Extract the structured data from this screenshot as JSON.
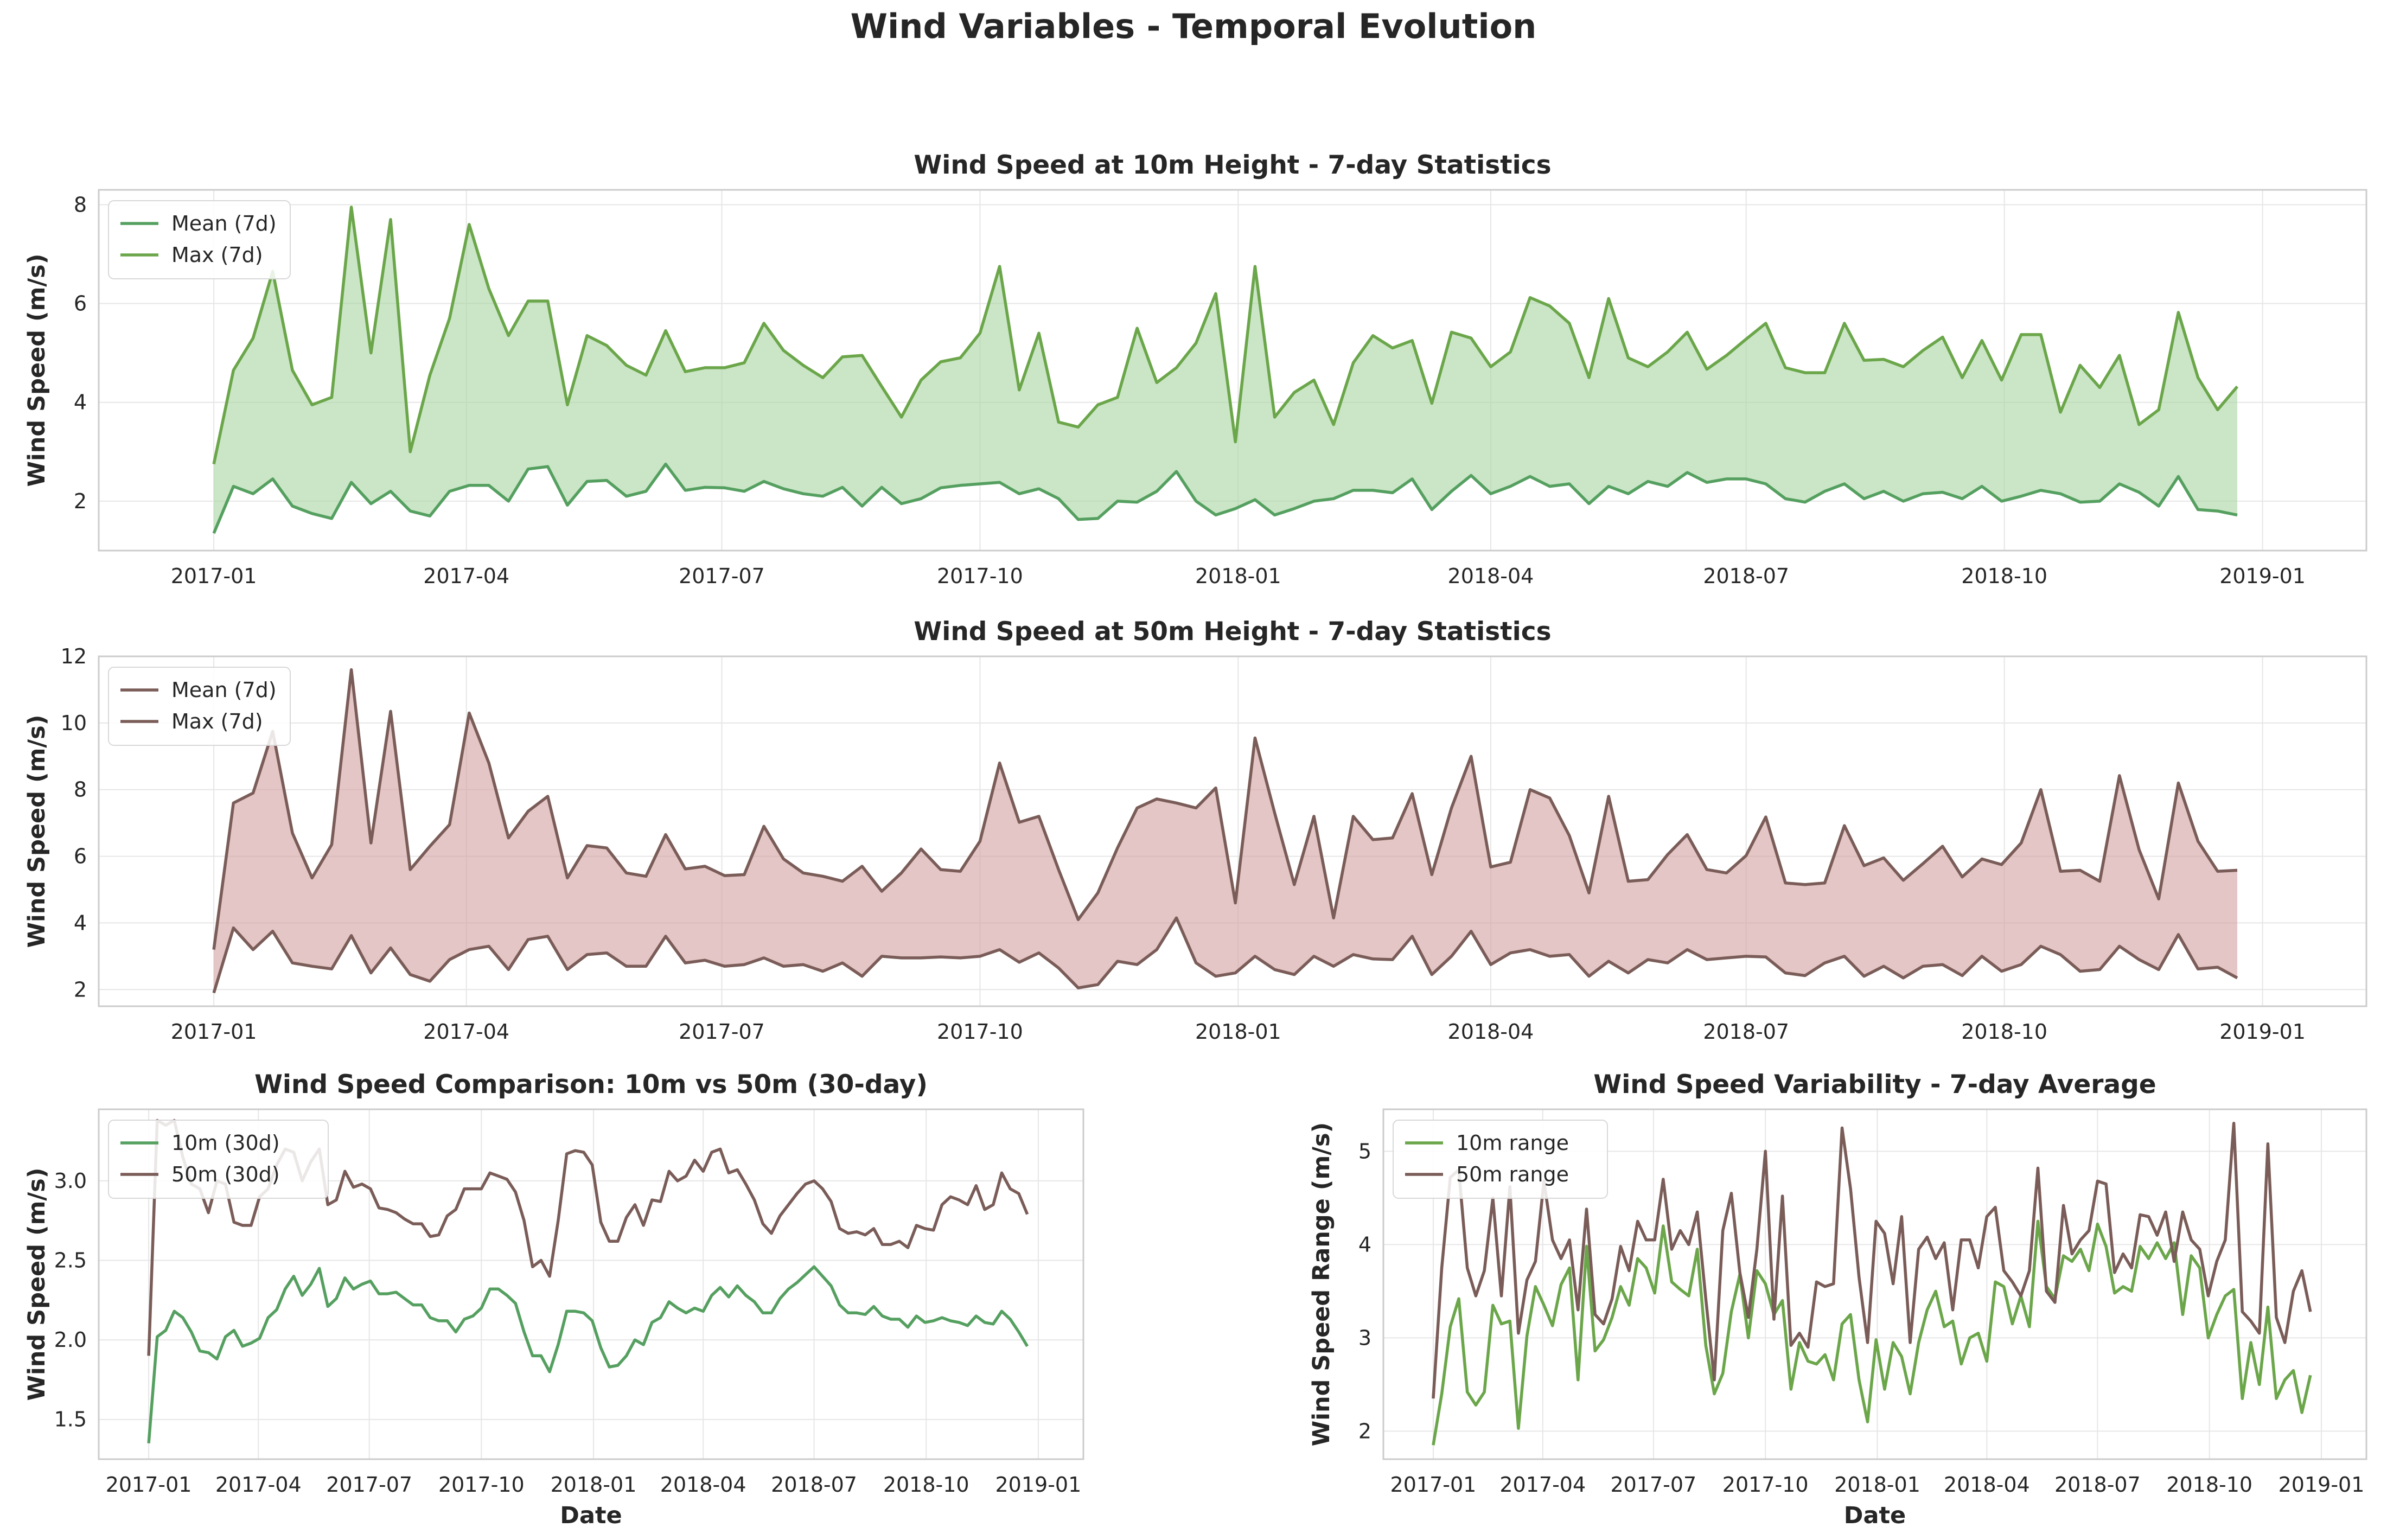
{
  "figure": {
    "title": "Wind Variables - Temporal Evolution"
  },
  "colors": {
    "green": "#55a060",
    "green_max": "#6ba64a",
    "green_fill": "#a8d5a2",
    "brown": "#7a5c58",
    "brown_fill": "#d4a0a0"
  },
  "chart_data": [
    {
      "type": "area",
      "title": "Wind Speed at 10m Height - 7-day Statistics",
      "xlabel": "",
      "ylabel": "Wind Speed (m/s)",
      "xlim": [
        "2016-11-21",
        "2019-02-07"
      ],
      "ylim": [
        1.0,
        8.3
      ],
      "yticks": [
        2,
        4,
        6,
        8
      ],
      "xticks": [
        "2017-01",
        "2017-04",
        "2017-07",
        "2017-10",
        "2018-01",
        "2018-04",
        "2018-07",
        "2018-10",
        "2019-01"
      ],
      "grid": true,
      "legend": "top-left",
      "x_start": "2017-01-01",
      "x_step_days": 7,
      "series": [
        {
          "name": "Mean (7d)",
          "color": "#55a060",
          "values": [
            1.35,
            2.3,
            2.15,
            2.45,
            1.9,
            1.75,
            1.65,
            2.38,
            1.95,
            2.2,
            1.8,
            1.7,
            2.2,
            2.32,
            2.32,
            2.0,
            2.65,
            2.7,
            1.92,
            2.4,
            2.42,
            2.1,
            2.2,
            2.75,
            2.22,
            2.28,
            2.27,
            2.2,
            2.4,
            2.25,
            2.15,
            2.1,
            2.28,
            1.9,
            2.28,
            1.95,
            2.05,
            2.27,
            2.32,
            2.35,
            2.38,
            2.15,
            2.25,
            2.05,
            1.63,
            1.65,
            2.0,
            1.98,
            2.2,
            2.6,
            2.0,
            1.72,
            1.85,
            2.03,
            1.72,
            1.85,
            2.0,
            2.05,
            2.22,
            2.22,
            2.17,
            2.45,
            1.83,
            2.2,
            2.52,
            2.15,
            2.3,
            2.5,
            2.3,
            2.35,
            1.95,
            2.3,
            2.15,
            2.4,
            2.3,
            2.58,
            2.38,
            2.45,
            2.45,
            2.35,
            2.05,
            1.98,
            2.2,
            2.35,
            2.05,
            2.2,
            2.0,
            2.15,
            2.18,
            2.05,
            2.3,
            2.0,
            2.1,
            2.22,
            2.15,
            1.98,
            2.0,
            2.35,
            2.18,
            1.9,
            2.5,
            1.83,
            1.8,
            1.72
          ]
        },
        {
          "name": "Max (7d)",
          "color": "#6ba64a",
          "values": [
            2.75,
            4.65,
            5.3,
            6.65,
            4.65,
            3.95,
            4.1,
            7.95,
            5.0,
            7.7,
            3.0,
            4.55,
            5.7,
            7.6,
            6.3,
            5.35,
            6.05,
            6.05,
            3.95,
            5.35,
            5.15,
            4.75,
            4.55,
            5.45,
            4.62,
            4.7,
            4.7,
            4.8,
            5.6,
            5.05,
            4.75,
            4.5,
            4.92,
            4.95,
            4.32,
            3.7,
            4.45,
            4.82,
            4.9,
            5.4,
            6.75,
            4.25,
            5.4,
            3.6,
            3.5,
            3.95,
            4.1,
            5.5,
            4.4,
            4.7,
            5.2,
            6.2,
            3.2,
            6.75,
            3.7,
            4.2,
            4.45,
            3.55,
            4.8,
            5.35,
            5.1,
            5.25,
            3.98,
            5.42,
            5.3,
            4.72,
            5.02,
            6.12,
            5.95,
            5.6,
            4.5,
            6.1,
            4.9,
            4.72,
            5.02,
            5.42,
            4.67,
            4.95,
            5.28,
            5.6,
            4.7,
            4.6,
            4.6,
            5.6,
            4.85,
            4.87,
            4.72,
            5.05,
            5.32,
            4.5,
            5.25,
            4.45,
            5.37,
            5.37,
            3.8,
            4.75,
            4.3,
            4.95,
            3.55,
            3.85,
            5.82,
            4.5,
            3.85,
            4.32
          ]
        }
      ]
    },
    {
      "type": "area",
      "title": "Wind Speed at 50m Height - 7-day Statistics",
      "xlabel": "",
      "ylabel": "Wind Speed (m/s)",
      "xlim": [
        "2016-11-21",
        "2019-02-07"
      ],
      "ylim": [
        1.5,
        12.0
      ],
      "yticks": [
        2,
        4,
        6,
        8,
        10,
        12
      ],
      "xticks": [
        "2017-01",
        "2017-04",
        "2017-07",
        "2017-10",
        "2018-01",
        "2018-04",
        "2018-07",
        "2018-10",
        "2019-01"
      ],
      "grid": true,
      "legend": "top-left",
      "x_start": "2017-01-01",
      "x_step_days": 7,
      "series": [
        {
          "name": "Mean (7d)",
          "color": "#7a5c58",
          "values": [
            1.9,
            3.85,
            3.2,
            3.75,
            2.8,
            2.7,
            2.62,
            3.62,
            2.5,
            3.25,
            2.45,
            2.25,
            2.9,
            3.2,
            3.3,
            2.6,
            3.5,
            3.6,
            2.6,
            3.05,
            3.1,
            2.7,
            2.7,
            3.6,
            2.8,
            2.88,
            2.7,
            2.75,
            2.95,
            2.7,
            2.75,
            2.55,
            2.8,
            2.4,
            3.0,
            2.95,
            2.95,
            2.98,
            2.95,
            3.0,
            3.2,
            2.82,
            3.1,
            2.65,
            2.05,
            2.15,
            2.85,
            2.75,
            3.2,
            4.15,
            2.8,
            2.4,
            2.5,
            3.0,
            2.6,
            2.45,
            3.0,
            2.7,
            3.05,
            2.92,
            2.9,
            3.6,
            2.45,
            3.0,
            3.75,
            2.75,
            3.1,
            3.2,
            3.0,
            3.05,
            2.4,
            2.85,
            2.5,
            2.9,
            2.8,
            3.2,
            2.9,
            2.95,
            3.0,
            2.98,
            2.5,
            2.42,
            2.8,
            3.0,
            2.4,
            2.7,
            2.35,
            2.7,
            2.75,
            2.42,
            3.0,
            2.55,
            2.75,
            3.3,
            3.05,
            2.55,
            2.6,
            3.3,
            2.9,
            2.6,
            3.65,
            2.62,
            2.67,
            2.35
          ]
        },
        {
          "name": "Max (7d)",
          "color": "#7a5c58",
          "values": [
            3.2,
            7.6,
            7.9,
            9.75,
            6.7,
            5.35,
            6.35,
            11.6,
            6.4,
            10.35,
            5.6,
            6.3,
            6.95,
            10.3,
            8.8,
            6.55,
            7.35,
            7.8,
            5.35,
            6.32,
            6.25,
            5.5,
            5.4,
            6.65,
            5.62,
            5.7,
            5.42,
            5.45,
            6.9,
            5.92,
            5.5,
            5.4,
            5.25,
            5.7,
            4.95,
            5.5,
            6.22,
            5.6,
            5.55,
            6.45,
            8.8,
            7.02,
            7.2,
            5.6,
            4.1,
            4.9,
            6.25,
            7.45,
            7.72,
            7.6,
            7.45,
            8.05,
            4.6,
            9.55,
            7.3,
            5.15,
            7.2,
            4.15,
            7.2,
            6.5,
            6.55,
            7.88,
            5.45,
            7.45,
            9.0,
            5.68,
            5.82,
            8.0,
            7.75,
            6.62,
            4.9,
            7.8,
            5.25,
            5.3,
            6.05,
            6.65,
            5.6,
            5.5,
            6.02,
            7.18,
            5.2,
            5.15,
            5.2,
            6.92,
            5.72,
            5.95,
            5.28,
            5.78,
            6.3,
            5.38,
            5.92,
            5.75,
            6.4,
            8.0,
            5.55,
            5.58,
            5.25,
            8.42,
            6.2,
            4.72,
            8.2,
            6.45,
            5.55,
            5.58
          ]
        }
      ]
    },
    {
      "type": "line",
      "title": "Wind Speed Comparison: 10m vs 50m (30-day)",
      "xlabel": "Date",
      "ylabel": "Wind Speed (m/s)",
      "xlim": [
        "2016-11-21",
        "2019-02-07"
      ],
      "ylim": [
        1.25,
        3.45
      ],
      "yticks": [
        1.5,
        2.0,
        2.5,
        3.0
      ],
      "xticks": [
        "2017-01",
        "2017-04",
        "2017-07",
        "2017-10",
        "2018-01",
        "2018-04",
        "2018-07",
        "2018-10",
        "2019-01"
      ],
      "grid": true,
      "legend": "top-left",
      "x_start": "2017-01-01",
      "x_step_days": 7,
      "series": [
        {
          "name": "10m (30d)",
          "color": "#55a060",
          "values": [
            1.35,
            2.02,
            2.06,
            2.18,
            2.14,
            2.05,
            1.93,
            1.92,
            1.88,
            2.02,
            2.06,
            1.96,
            1.98,
            2.01,
            2.14,
            2.19,
            2.32,
            2.4,
            2.28,
            2.35,
            2.45,
            2.21,
            2.26,
            2.39,
            2.32,
            2.35,
            2.37,
            2.29,
            2.29,
            2.3,
            2.26,
            2.22,
            2.22,
            2.14,
            2.12,
            2.12,
            2.05,
            2.13,
            2.15,
            2.2,
            2.32,
            2.32,
            2.28,
            2.23,
            2.05,
            1.9,
            1.9,
            1.8,
            1.97,
            2.18,
            2.18,
            2.17,
            2.12,
            1.95,
            1.83,
            1.84,
            1.9,
            2.0,
            1.97,
            2.11,
            2.14,
            2.24,
            2.2,
            2.17,
            2.2,
            2.18,
            2.28,
            2.33,
            2.27,
            2.34,
            2.28,
            2.24,
            2.17,
            2.17,
            2.26,
            2.32,
            2.36,
            2.41,
            2.46,
            2.4,
            2.34,
            2.22,
            2.17,
            2.17,
            2.16,
            2.21,
            2.15,
            2.13,
            2.13,
            2.08,
            2.15,
            2.11,
            2.12,
            2.14,
            2.12,
            2.11,
            2.09,
            2.15,
            2.11,
            2.1,
            2.18,
            2.13,
            2.05,
            1.96
          ]
        },
        {
          "name": "50m (30d)",
          "color": "#7a5c58",
          "values": [
            1.9,
            3.38,
            3.35,
            3.38,
            3.15,
            2.98,
            2.95,
            2.8,
            3.0,
            2.98,
            2.74,
            2.72,
            2.72,
            2.9,
            2.95,
            3.1,
            3.2,
            3.18,
            3.0,
            3.12,
            3.2,
            2.85,
            2.88,
            3.06,
            2.96,
            2.98,
            2.95,
            2.83,
            2.82,
            2.8,
            2.76,
            2.73,
            2.73,
            2.65,
            2.66,
            2.78,
            2.82,
            2.95,
            2.95,
            2.95,
            3.05,
            3.03,
            3.01,
            2.93,
            2.75,
            2.46,
            2.5,
            2.4,
            2.75,
            3.17,
            3.19,
            3.18,
            3.1,
            2.74,
            2.62,
            2.62,
            2.77,
            2.85,
            2.72,
            2.88,
            2.87,
            3.06,
            3.0,
            3.03,
            3.13,
            3.06,
            3.18,
            3.2,
            3.05,
            3.07,
            2.98,
            2.88,
            2.73,
            2.67,
            2.78,
            2.85,
            2.92,
            2.98,
            3.0,
            2.95,
            2.87,
            2.7,
            2.67,
            2.68,
            2.66,
            2.7,
            2.6,
            2.6,
            2.62,
            2.58,
            2.72,
            2.7,
            2.69,
            2.85,
            2.9,
            2.88,
            2.85,
            2.97,
            2.82,
            2.85,
            3.05,
            2.95,
            2.92,
            2.79
          ]
        }
      ]
    },
    {
      "type": "line",
      "title": "Wind Speed Variability - 7-day Average",
      "xlabel": "Date",
      "ylabel": "Wind Speed Range (m/s)",
      "xlim": [
        "2016-11-21",
        "2019-02-07"
      ],
      "ylim": [
        1.7,
        5.45
      ],
      "yticks": [
        2,
        3,
        4,
        5
      ],
      "xticks": [
        "2017-01",
        "2017-04",
        "2017-07",
        "2017-10",
        "2018-01",
        "2018-04",
        "2018-07",
        "2018-10",
        "2019-01"
      ],
      "grid": true,
      "legend": "top-left",
      "x_start": "2017-01-01",
      "x_step_days": 7,
      "series": [
        {
          "name": "10m range",
          "color": "#6ba64a",
          "values": [
            1.85,
            2.4,
            3.12,
            3.42,
            2.42,
            2.28,
            2.42,
            3.35,
            3.15,
            3.18,
            2.03,
            3.02,
            3.55,
            3.35,
            3.13,
            3.57,
            3.75,
            2.55,
            3.98,
            2.86,
            2.98,
            3.22,
            3.55,
            3.35,
            3.85,
            3.75,
            3.48,
            4.2,
            3.6,
            3.52,
            3.45,
            3.95,
            2.92,
            2.4,
            2.62,
            3.28,
            3.68,
            3.0,
            3.72,
            3.58,
            3.25,
            3.4,
            2.45,
            2.95,
            2.75,
            2.72,
            2.82,
            2.55,
            3.15,
            3.25,
            2.55,
            2.1,
            2.98,
            2.45,
            2.95,
            2.8,
            2.4,
            2.95,
            3.3,
            3.5,
            3.12,
            3.18,
            2.72,
            3.0,
            3.05,
            2.75,
            3.6,
            3.55,
            3.15,
            3.45,
            3.12,
            4.25,
            3.55,
            3.42,
            3.88,
            3.82,
            3.95,
            3.72,
            4.22,
            3.98,
            3.48,
            3.55,
            3.5,
            3.98,
            3.85,
            4.02,
            3.85,
            4.02,
            3.25,
            3.88,
            3.75,
            3.0,
            3.25,
            3.45,
            3.52,
            2.35,
            2.95,
            2.5,
            3.33,
            2.35,
            2.55,
            2.65,
            2.2,
            2.6
          ]
        },
        {
          "name": "50m range",
          "color": "#7a5c58",
          "values": [
            2.35,
            3.75,
            4.72,
            4.8,
            3.75,
            3.45,
            3.72,
            4.5,
            3.45,
            4.62,
            3.05,
            3.62,
            3.82,
            4.68,
            4.05,
            3.85,
            4.05,
            3.3,
            4.38,
            3.25,
            3.15,
            3.42,
            3.98,
            3.72,
            4.25,
            4.05,
            4.05,
            4.7,
            3.95,
            4.15,
            4.0,
            4.35,
            3.42,
            2.55,
            4.15,
            4.55,
            3.7,
            3.22,
            3.95,
            5.0,
            3.2,
            4.52,
            2.92,
            3.05,
            2.9,
            3.6,
            3.55,
            3.58,
            5.25,
            4.6,
            3.65,
            2.95,
            4.25,
            4.12,
            3.58,
            4.3,
            2.95,
            3.95,
            4.08,
            3.85,
            4.02,
            3.3,
            4.05,
            4.05,
            3.75,
            4.3,
            4.4,
            3.72,
            3.6,
            3.45,
            3.72,
            4.82,
            3.5,
            3.38,
            4.42,
            3.9,
            4.05,
            4.15,
            4.68,
            4.65,
            3.7,
            3.9,
            3.75,
            4.32,
            4.3,
            4.1,
            4.35,
            3.82,
            4.35,
            4.05,
            3.95,
            3.45,
            3.82,
            4.05,
            5.3,
            3.28,
            3.18,
            3.05,
            5.08,
            3.22,
            2.95,
            3.5,
            3.72,
            3.28
          ]
        }
      ]
    }
  ]
}
